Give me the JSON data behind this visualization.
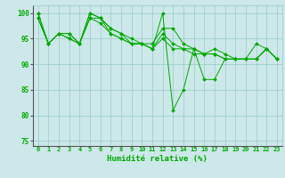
{
  "title": "",
  "xlabel": "Humidité relative (%)",
  "ylabel": "",
  "bg_color": "#cce8e8",
  "line_color": "#00aa00",
  "grid_color": "#99cccc",
  "xlim": [
    -0.5,
    23.5
  ],
  "ylim": [
    74,
    101.5
  ],
  "yticks": [
    75,
    80,
    85,
    90,
    95,
    100
  ],
  "xticks": [
    0,
    1,
    2,
    3,
    4,
    5,
    6,
    7,
    8,
    9,
    10,
    11,
    12,
    13,
    14,
    15,
    16,
    17,
    18,
    19,
    20,
    21,
    22,
    23
  ],
  "series": [
    [
      100,
      94,
      96,
      96,
      94,
      100,
      99,
      97,
      96,
      94,
      94,
      93,
      100,
      81,
      85,
      93,
      87,
      87,
      91,
      91,
      91,
      94,
      93,
      91
    ],
    [
      100,
      94,
      96,
      96,
      94,
      100,
      99,
      97,
      96,
      95,
      94,
      94,
      97,
      97,
      94,
      93,
      92,
      93,
      92,
      91,
      91,
      91,
      93,
      91
    ],
    [
      99,
      94,
      96,
      95,
      94,
      99,
      99,
      96,
      95,
      94,
      94,
      93,
      96,
      94,
      93,
      93,
      92,
      92,
      91,
      91,
      91,
      91,
      93,
      91
    ],
    [
      99,
      94,
      96,
      95,
      94,
      99,
      98,
      96,
      95,
      94,
      94,
      93,
      95,
      93,
      93,
      92,
      92,
      92,
      91,
      91,
      91,
      91,
      93,
      91
    ]
  ]
}
